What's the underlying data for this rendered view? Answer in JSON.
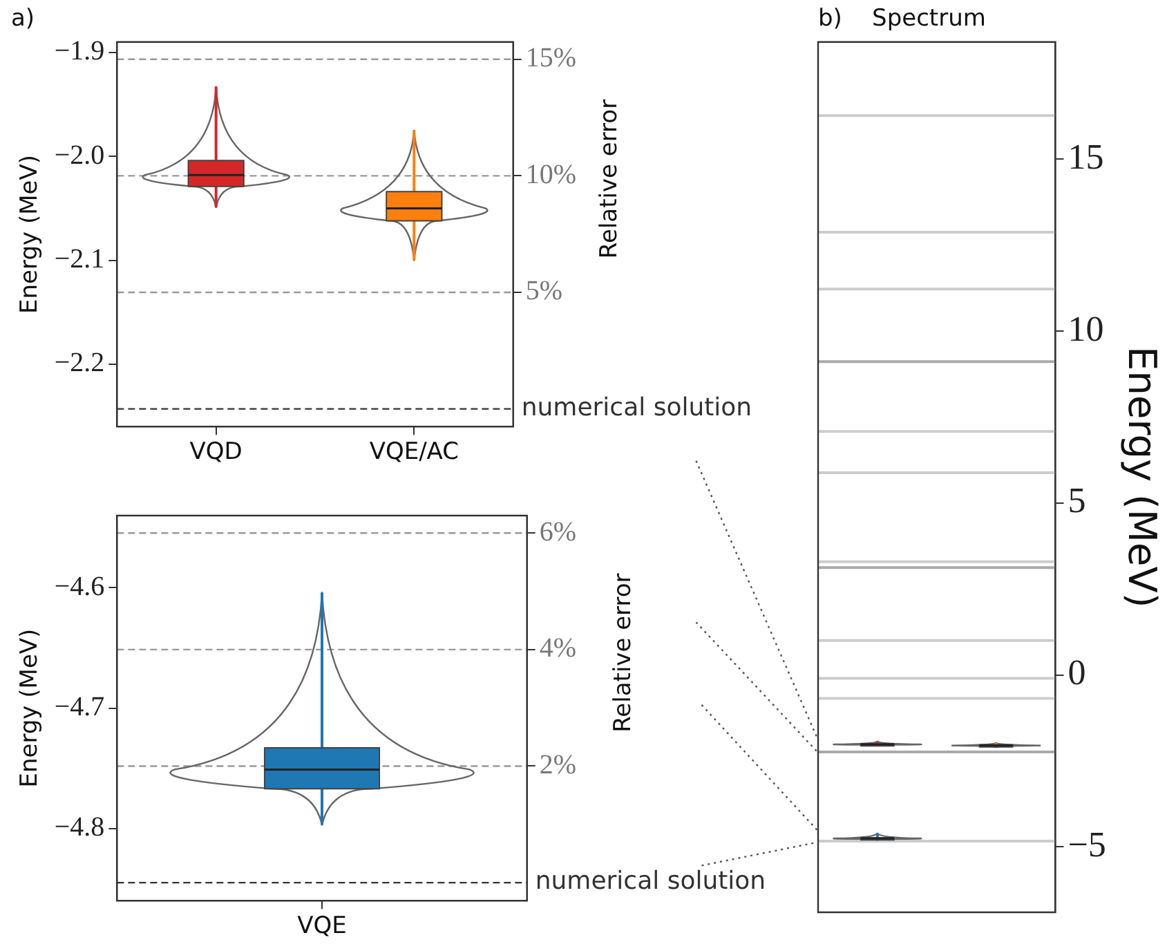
{
  "chart_data": [
    {
      "type": "box",
      "title": "a)",
      "categories": [
        "VQD",
        "VQE/AC"
      ],
      "ylabel": "Energy (MeV)",
      "y2label": "Relative error",
      "ylim": [
        -2.26,
        -1.89
      ],
      "yticks": [
        {
          "value": -1.9,
          "label": "−1.9"
        },
        {
          "value": -2.0,
          "label": "−2.0"
        },
        {
          "value": -2.1,
          "label": "−2.1"
        },
        {
          "value": -2.2,
          "label": "−2.2"
        }
      ],
      "y2lim": [
        -0.76,
        15.74
      ],
      "y2ticks": [
        {
          "value": 5,
          "label": "5%"
        },
        {
          "value": 10,
          "label": "10%"
        },
        {
          "value": 15,
          "label": "15%"
        }
      ],
      "colors": [
        "#d62728",
        "#ff7f0e"
      ],
      "boxes": [
        {
          "low": -2.049,
          "q1": -2.029,
          "median": -2.018,
          "q3": -2.004,
          "high": -1.933
        },
        {
          "low": -2.1,
          "q1": -2.062,
          "median": -2.05,
          "q3": -2.034,
          "high": -1.975
        }
      ],
      "ref_lines": [
        {
          "axis": "y2",
          "value": 15,
          "color": "#999999",
          "line_style": "dashed"
        },
        {
          "axis": "y2",
          "value": 10,
          "color": "#999999",
          "line_style": "dashed"
        },
        {
          "axis": "y2",
          "value": 5,
          "color": "#999999",
          "line_style": "dashed"
        },
        {
          "axis": "y",
          "value": -2.243,
          "label": "numerical solution",
          "color": "#333333",
          "line_style": "dashed"
        }
      ]
    },
    {
      "type": "box",
      "categories": [
        "VQE"
      ],
      "ylabel": "Energy (MeV)",
      "y2label": "Relative error",
      "ylim": [
        -4.86,
        -4.54
      ],
      "yticks": [
        {
          "value": -4.6,
          "label": "−4.6"
        },
        {
          "value": -4.7,
          "label": "−4.7"
        },
        {
          "value": -4.8,
          "label": "−4.8"
        }
      ],
      "y2lim": [
        -0.31,
        6.3
      ],
      "y2ticks": [
        {
          "value": 2,
          "label": "2%"
        },
        {
          "value": 4,
          "label": "4%"
        },
        {
          "value": 6,
          "label": "6%"
        }
      ],
      "colors": [
        "#1f77b4"
      ],
      "boxes": [
        {
          "low": -4.797,
          "q1": -4.767,
          "median": -4.751,
          "q3": -4.733,
          "high": -4.604
        }
      ],
      "ref_lines": [
        {
          "axis": "y2",
          "value": 6,
          "color": "#999999",
          "line_style": "dashed"
        },
        {
          "axis": "y2",
          "value": 4,
          "color": "#999999",
          "line_style": "dashed"
        },
        {
          "axis": "y2",
          "value": 2,
          "color": "#999999",
          "line_style": "dashed"
        },
        {
          "axis": "y",
          "value": -4.845,
          "label": "numerical solution",
          "color": "#333333",
          "line_style": "dashed"
        }
      ]
    },
    {
      "type": "box",
      "title": "b)    Spectrum",
      "categories": [
        null,
        null
      ],
      "y2label": "Energy (MeV)",
      "y2lim": [
        -6.9,
        18.4
      ],
      "y2ticks": [
        {
          "value": -5,
          "label": "−5"
        },
        0,
        5,
        10,
        15
      ],
      "series": [
        {
          "axis": "y2",
          "colors": [
            "#d62728",
            "#ff7f0e"
          ],
          "boxes": [
            {
              "low": -2.049,
              "q1": -2.029,
              "median": -2.018,
              "q3": -2.004,
              "high": -1.933
            },
            {
              "low": -2.1,
              "q1": -2.062,
              "median": -2.05,
              "q3": -2.034,
              "high": -1.975
            }
          ]
        },
        {
          "axis": "y2",
          "colors": [
            "#1f77b4",
            null
          ],
          "boxes": [
            {
              "low": -4.797,
              "q1": -4.767,
              "median": -4.751,
              "q3": -4.733,
              "high": -4.604
            },
            null
          ]
        }
      ],
      "ref_lines": [
        {
          "axis": "y2",
          "value": 16.26,
          "color": "#cccccc"
        },
        {
          "axis": "y2",
          "value": 12.87,
          "color": "#cccccc"
        },
        {
          "axis": "y2",
          "value": 11.22,
          "color": "#cccccc"
        },
        {
          "axis": "y2",
          "value": 9.11,
          "color": "#aaaaaa"
        },
        {
          "axis": "y2",
          "value": 7.08,
          "color": "#cccccc"
        },
        {
          "axis": "y2",
          "value": 5.88,
          "color": "#cccccc"
        },
        {
          "axis": "y2",
          "value": 3.29,
          "color": "#cccccc"
        },
        {
          "axis": "y2",
          "value": 3.12,
          "color": "#aaaaaa"
        },
        {
          "axis": "y2",
          "value": 1.0,
          "color": "#cccccc"
        },
        {
          "axis": "y2",
          "value": -0.1,
          "color": "#cccccc"
        },
        {
          "axis": "y2",
          "value": -0.68,
          "color": "#cccccc"
        },
        {
          "axis": "y2",
          "value": -2.24,
          "color": "#aaaaaa"
        },
        {
          "axis": "y2",
          "value": -4.83,
          "color": "#cccccc"
        }
      ]
    }
  ]
}
